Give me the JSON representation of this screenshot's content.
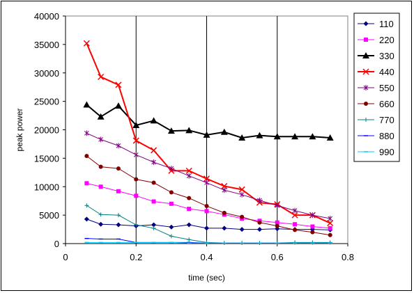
{
  "chart_data": {
    "type": "line",
    "xlabel": "time (sec)",
    "ylabel": "peak power",
    "xlim": [
      0,
      0.8
    ],
    "ylim": [
      0,
      40000
    ],
    "xticks": [
      "0",
      "0.2",
      "0.4",
      "0.6",
      "0.8"
    ],
    "yticks": [
      "0",
      "5000",
      "10000",
      "15000",
      "20000",
      "25000",
      "30000",
      "35000",
      "40000"
    ],
    "grid": "vertical-major",
    "legend_position": "right",
    "x": [
      0.06,
      0.1,
      0.15,
      0.2,
      0.25,
      0.3,
      0.35,
      0.4,
      0.45,
      0.5,
      0.55,
      0.6,
      0.65,
      0.7,
      0.75
    ],
    "series": [
      {
        "name": "110",
        "color": "#000080",
        "marker": "diamond",
        "values": [
          4300,
          3400,
          3300,
          3100,
          3300,
          2900,
          3300,
          2700,
          2700,
          2500,
          2500,
          2600,
          2500,
          2500,
          2400
        ]
      },
      {
        "name": "220",
        "color": "#ff00ff",
        "marker": "square",
        "values": [
          10600,
          10000,
          9200,
          8400,
          7400,
          7000,
          6100,
          5700,
          5100,
          4400,
          4000,
          3700,
          3400,
          3000,
          2700
        ]
      },
      {
        "name": "330",
        "color": "#000000",
        "marker": "triangle",
        "values": [
          24400,
          22300,
          24200,
          20800,
          21600,
          19800,
          19900,
          19100,
          19600,
          18600,
          19000,
          18800,
          18800,
          18800,
          18600
        ]
      },
      {
        "name": "440",
        "color": "#ff0000",
        "marker": "x",
        "values": [
          35200,
          29300,
          27900,
          18100,
          16400,
          12800,
          12800,
          11400,
          10100,
          9500,
          7200,
          6900,
          5000,
          5000,
          3600
        ]
      },
      {
        "name": "550",
        "color": "#800080",
        "marker": "star",
        "values": [
          19400,
          18300,
          17200,
          15600,
          14300,
          13200,
          11900,
          10700,
          9400,
          8600,
          7600,
          6700,
          5800,
          5000,
          4400
        ]
      },
      {
        "name": "660",
        "color": "#800000",
        "marker": "circle",
        "values": [
          15400,
          13500,
          13200,
          11300,
          10700,
          9000,
          8000,
          6600,
          5400,
          4700,
          3700,
          3100,
          2400,
          2000,
          1500
        ]
      },
      {
        "name": "770",
        "color": "#008080",
        "marker": "plus",
        "values": [
          6700,
          5100,
          5000,
          3300,
          2700,
          1300,
          700,
          200,
          100,
          100,
          100,
          100,
          200,
          200,
          200
        ]
      },
      {
        "name": "880",
        "color": "#0000ff",
        "marker": "dash",
        "values": [
          900,
          800,
          800,
          200,
          200,
          200,
          200,
          100,
          100,
          100,
          100,
          100,
          100,
          100,
          100
        ]
      },
      {
        "name": "990",
        "color": "#00ccff",
        "marker": "dash",
        "values": [
          200,
          200,
          200,
          200,
          200,
          200,
          100,
          100,
          100,
          100,
          100,
          100,
          100,
          100,
          100
        ]
      }
    ]
  }
}
